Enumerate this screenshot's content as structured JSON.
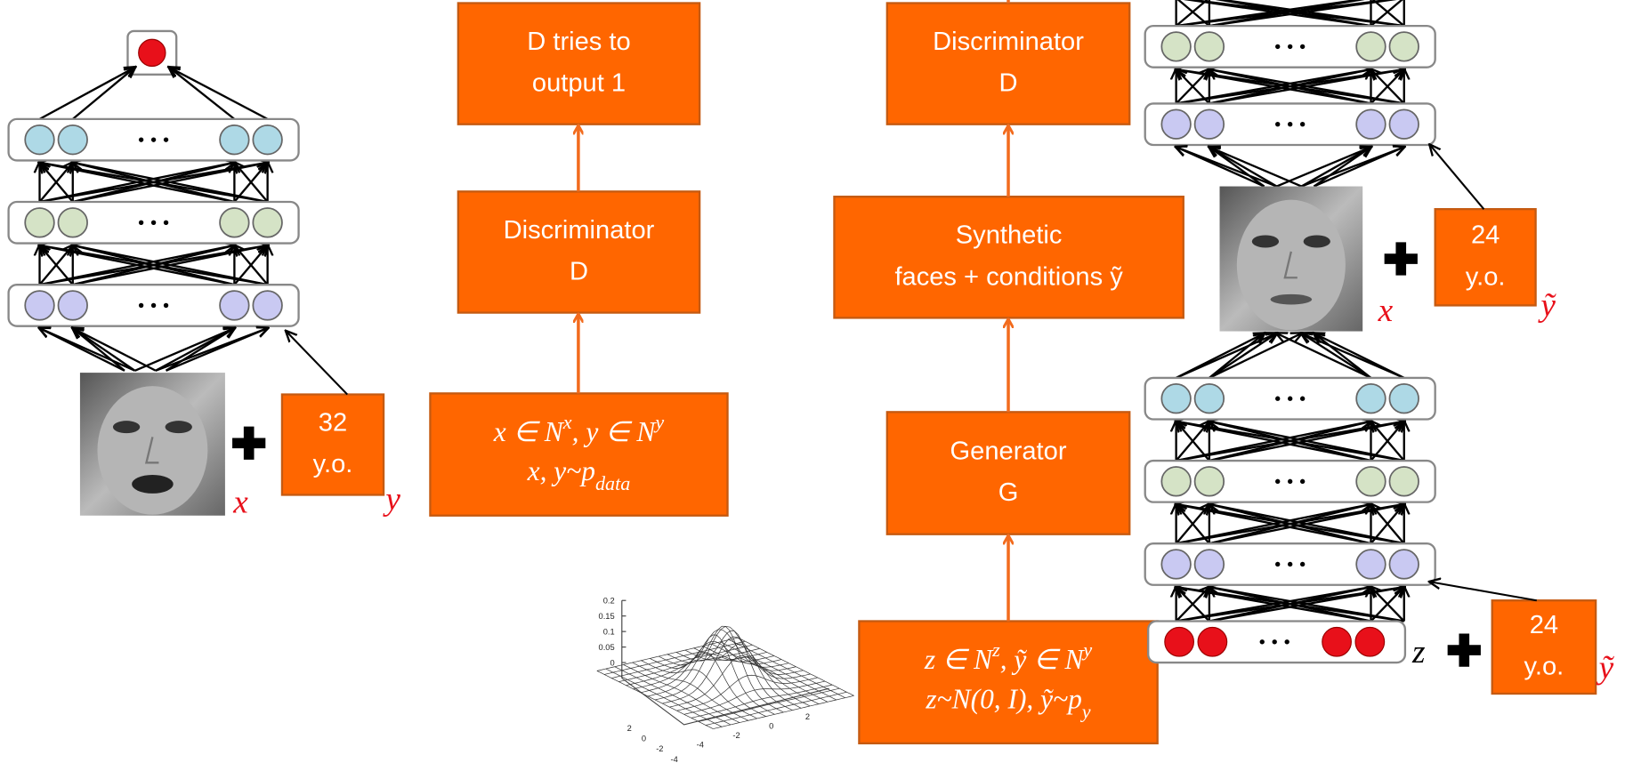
{
  "left": {
    "age": [
      "32",
      "y.o."
    ],
    "image_label": "x",
    "condition_label": "y"
  },
  "real_branch": {
    "output": [
      "D tries to",
      "output 1"
    ],
    "discriminator": [
      "Discriminator",
      "D"
    ],
    "input": [
      [
        {
          "t": "x ∈ N"
        },
        {
          "sup": "x"
        },
        {
          "t": ", y ∈ N"
        },
        {
          "sup": "y"
        }
      ],
      [
        {
          "t": "x, y~p"
        },
        {
          "sub": "data"
        }
      ]
    ]
  },
  "fake_branch": {
    "discriminator": [
      "Discriminator",
      "D"
    ],
    "synthetic": [
      "Synthetic",
      "faces + conditions ỹ"
    ],
    "generator": [
      "Generator",
      "G"
    ],
    "input": [
      [
        {
          "t": "z ∈ N"
        },
        {
          "sup": "z"
        },
        {
          "t": ", ỹ ∈ N"
        },
        {
          "sup": "y"
        }
      ],
      [
        {
          "t": "z~N(0, I), ỹ~p"
        },
        {
          "sub": "y"
        }
      ]
    ]
  },
  "right": {
    "age_top": [
      "24",
      "y.o."
    ],
    "image_label": "x",
    "condition_top": "ỹ",
    "noise_label": "z",
    "age_bottom": [
      "24",
      "y.o."
    ],
    "condition_bottom": "ỹ"
  },
  "gaussian_plot": {
    "z_ticks": [
      "0.2",
      "0.15",
      "0.1",
      "0.05",
      "0"
    ],
    "x_ticks": [
      "2",
      "0",
      "-2",
      "-4"
    ],
    "y_ticks": [
      "-4",
      "-2",
      "0",
      "2"
    ]
  }
}
